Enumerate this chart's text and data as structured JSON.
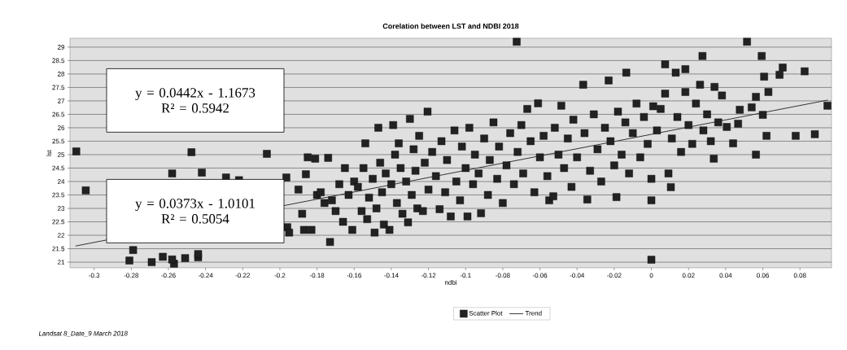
{
  "chart_data": {
    "type": "scatter",
    "title": "Corelation between  LST and NDBI 2018",
    "xlabel": "ndbi",
    "ylabel": "lst",
    "xlim": [
      -0.313,
      0.097
    ],
    "ylim": [
      20.79,
      29.33
    ],
    "xticks": [
      -0.3,
      -0.28,
      -0.26,
      -0.24,
      -0.22,
      -0.2,
      -0.18,
      -0.16,
      -0.14,
      -0.12,
      -0.1,
      -0.08,
      -0.06,
      -0.04,
      -0.02,
      0,
      0.02,
      0.04,
      0.06,
      0.08
    ],
    "yticks": [
      21,
      21.5,
      22,
      22.5,
      23,
      23.5,
      24,
      24.5,
      25,
      25.5,
      26,
      26.5,
      27,
      27.5,
      28,
      28.5,
      29
    ],
    "grid": "y",
    "legend": "bottom",
    "marker": "square",
    "annotations": [
      "y = 0.0442x - 1.1673",
      "R² = 0.5942",
      "y = 0.0373x - 1.0101",
      "R² = 0.5054",
      "Landsat 8_Date_9 March 2018"
    ],
    "series": [
      {
        "name": "Scatter Plot",
        "color": "#222222",
        "x": [
          -0.3096,
          -0.3045,
          -0.281,
          -0.279,
          -0.269,
          -0.263,
          -0.257,
          -0.258,
          -0.251,
          -0.244,
          -0.244,
          -0.2476,
          -0.258,
          -0.242,
          -0.229,
          -0.222,
          -0.207,
          -0.1965,
          -0.196,
          -0.195,
          -0.19,
          -0.188,
          -0.187,
          -0.186,
          -0.185,
          -0.183,
          -0.181,
          -0.18,
          -0.178,
          -0.176,
          -0.174,
          -0.173,
          -0.172,
          -0.17,
          -0.168,
          -0.166,
          -0.165,
          -0.163,
          -0.161,
          -0.16,
          -0.158,
          -0.156,
          -0.155,
          -0.154,
          -0.153,
          -0.152,
          -0.15,
          -0.149,
          -0.148,
          -0.147,
          -0.146,
          -0.145,
          -0.144,
          -0.143,
          -0.141,
          -0.14,
          -0.139,
          -0.138,
          -0.137,
          -0.136,
          -0.135,
          -0.134,
          -0.132,
          -0.131,
          -0.13,
          -0.129,
          -0.128,
          -0.127,
          -0.126,
          -0.125,
          -0.123,
          -0.122,
          -0.1205,
          -0.12,
          -0.118,
          -0.116,
          -0.114,
          -0.113,
          -0.111,
          -0.11,
          -0.108,
          -0.106,
          -0.105,
          -0.103,
          -0.102,
          -0.1,
          -0.099,
          -0.098,
          -0.096,
          -0.095,
          -0.093,
          -0.0917,
          -0.09,
          -0.088,
          -0.087,
          -0.085,
          -0.083,
          -0.082,
          -0.08,
          -0.078,
          -0.0725,
          -0.076,
          -0.074,
          -0.072,
          -0.07,
          -0.069,
          -0.0668,
          -0.065,
          -0.063,
          -0.061,
          -0.06,
          -0.058,
          -0.056,
          -0.055,
          -0.0528,
          -0.052,
          -0.05,
          -0.0485,
          -0.047,
          -0.045,
          -0.043,
          -0.042,
          -0.04,
          -0.0367,
          -0.0345,
          -0.036,
          -0.033,
          -0.031,
          -0.029,
          -0.027,
          -0.025,
          -0.023,
          -0.022,
          -0.0188,
          -0.02,
          -0.018,
          -0.016,
          -0.0135,
          -0.014,
          -0.012,
          -0.01,
          -0.008,
          -0.006,
          -0.004,
          -0.002,
          0,
          0,
          0,
          0.001,
          0.003,
          0.005,
          0.0074,
          0.0074,
          0.0092,
          0.0105,
          0.011,
          0.0131,
          0.014,
          0.016,
          0.0183,
          0.0183,
          0.02,
          0.022,
          0.024,
          0.0262,
          0.0275,
          0.028,
          0.03,
          0.032,
          0.034,
          0.0336,
          0.036,
          0.038,
          0.0406,
          0.044,
          0.0467,
          0.0476,
          0.0515,
          0.054,
          0.0563,
          0.0563,
          0.0594,
          0.06,
          0.0607,
          0.062,
          0.063,
          0.069,
          0.0707,
          0.0777,
          0.0825,
          0.088,
          0.0948
        ],
        "values": [
          25.12,
          23.67,
          21.06,
          21.45,
          21.0,
          21.2,
          20.94,
          21.1,
          21.15,
          21.18,
          21.3,
          25.09,
          24.3,
          24.33,
          24.15,
          24.05,
          25.03,
          24.15,
          22.3,
          22.1,
          23.7,
          22.8,
          22.2,
          24.27,
          24.9,
          22.2,
          24.85,
          23.5,
          23.6,
          23.2,
          24.88,
          21.75,
          23.3,
          22.9,
          23.9,
          22.5,
          24.5,
          23.5,
          22.2,
          24.0,
          23.8,
          22.9,
          24.5,
          25.42,
          22.6,
          23.4,
          24.1,
          22.1,
          23.0,
          26.0,
          24.7,
          23.6,
          22.4,
          24.3,
          22.2,
          23.9,
          26.1,
          25.0,
          23.2,
          25.42,
          24.5,
          22.8,
          24.0,
          22.48,
          26.33,
          23.5,
          25.2,
          24.4,
          23.0,
          25.7,
          22.9,
          24.7,
          26.6,
          23.7,
          25.1,
          24.2,
          22.97,
          25.5,
          23.6,
          24.8,
          22.7,
          25.9,
          24.0,
          23.3,
          25.3,
          24.5,
          22.7,
          26.0,
          23.9,
          25.0,
          24.3,
          22.82,
          25.6,
          23.5,
          24.8,
          26.2,
          24.1,
          25.3,
          23.2,
          24.6,
          29.2,
          25.8,
          23.9,
          25.1,
          26.1,
          24.3,
          26.7,
          25.5,
          23.6,
          26.91,
          24.9,
          25.7,
          24.2,
          23.3,
          23.45,
          26.0,
          25.0,
          26.82,
          24.5,
          25.6,
          23.8,
          26.3,
          24.9,
          27.6,
          23.33,
          25.8,
          24.4,
          26.5,
          25.2,
          24.0,
          26.0,
          27.76,
          25.5,
          23.42,
          24.6,
          26.6,
          25.0,
          28.05,
          26.2,
          24.3,
          25.8,
          26.9,
          24.9,
          26.4,
          25.4,
          21.09,
          23.3,
          24.1,
          26.8,
          25.9,
          26.7,
          28.36,
          27.27,
          24.3,
          23.79,
          25.6,
          28.05,
          26.4,
          25.1,
          28.18,
          27.33,
          26.1,
          25.4,
          26.9,
          27.6,
          28.67,
          25.9,
          26.5,
          25.5,
          27.52,
          24.85,
          26.2,
          27.2,
          26.03,
          25.42,
          26.15,
          26.67,
          29.2,
          26.76,
          27.15,
          25.0,
          28.67,
          26.48,
          27.9,
          25.7,
          27.33,
          27.97,
          28.24,
          25.7,
          28.1,
          25.76,
          26.82
        ]
      },
      {
        "name": "Trend",
        "type": "line",
        "color": "#333333",
        "marker": "none",
        "x": [
          -0.31,
          0.095
        ],
        "values": [
          21.6,
          27.03
        ]
      }
    ]
  }
}
